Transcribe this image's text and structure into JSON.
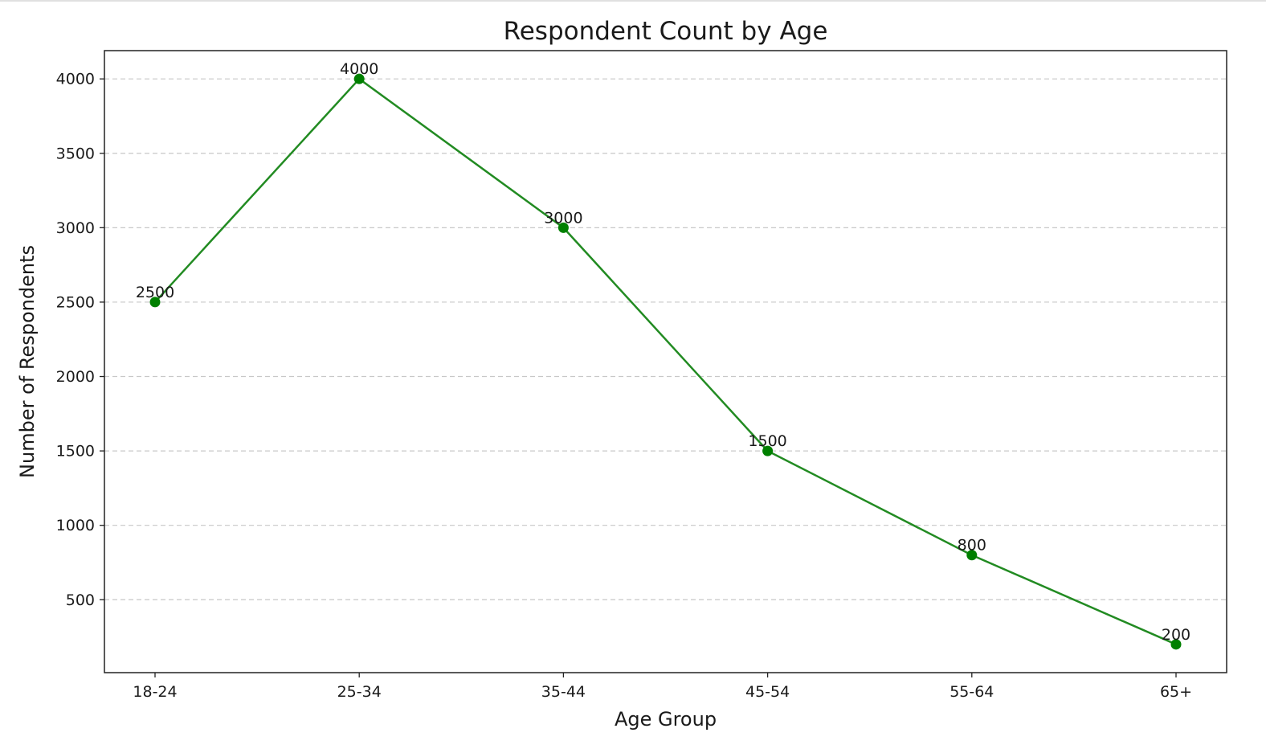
{
  "chart_data": {
    "type": "line",
    "title": "Respondent Count by Age",
    "xlabel": "Age Group",
    "ylabel": "Number of Respondents",
    "categories": [
      "18-24",
      "25-34",
      "35-44",
      "45-54",
      "55-64",
      "65+"
    ],
    "series": [
      {
        "values": [
          2500,
          4000,
          3000,
          1500,
          800,
          200
        ]
      }
    ],
    "data_labels": [
      "2500",
      "4000",
      "3000",
      "1500",
      "800",
      "200"
    ],
    "ylim": [
      10,
      4190
    ],
    "yticks": [
      500,
      1000,
      1500,
      2000,
      2500,
      3000,
      3500,
      4000
    ],
    "grid": {
      "y": true,
      "x": false,
      "style": "dashed"
    },
    "line_color": "#228b22",
    "marker_color": "#008000",
    "marker": "circle"
  }
}
